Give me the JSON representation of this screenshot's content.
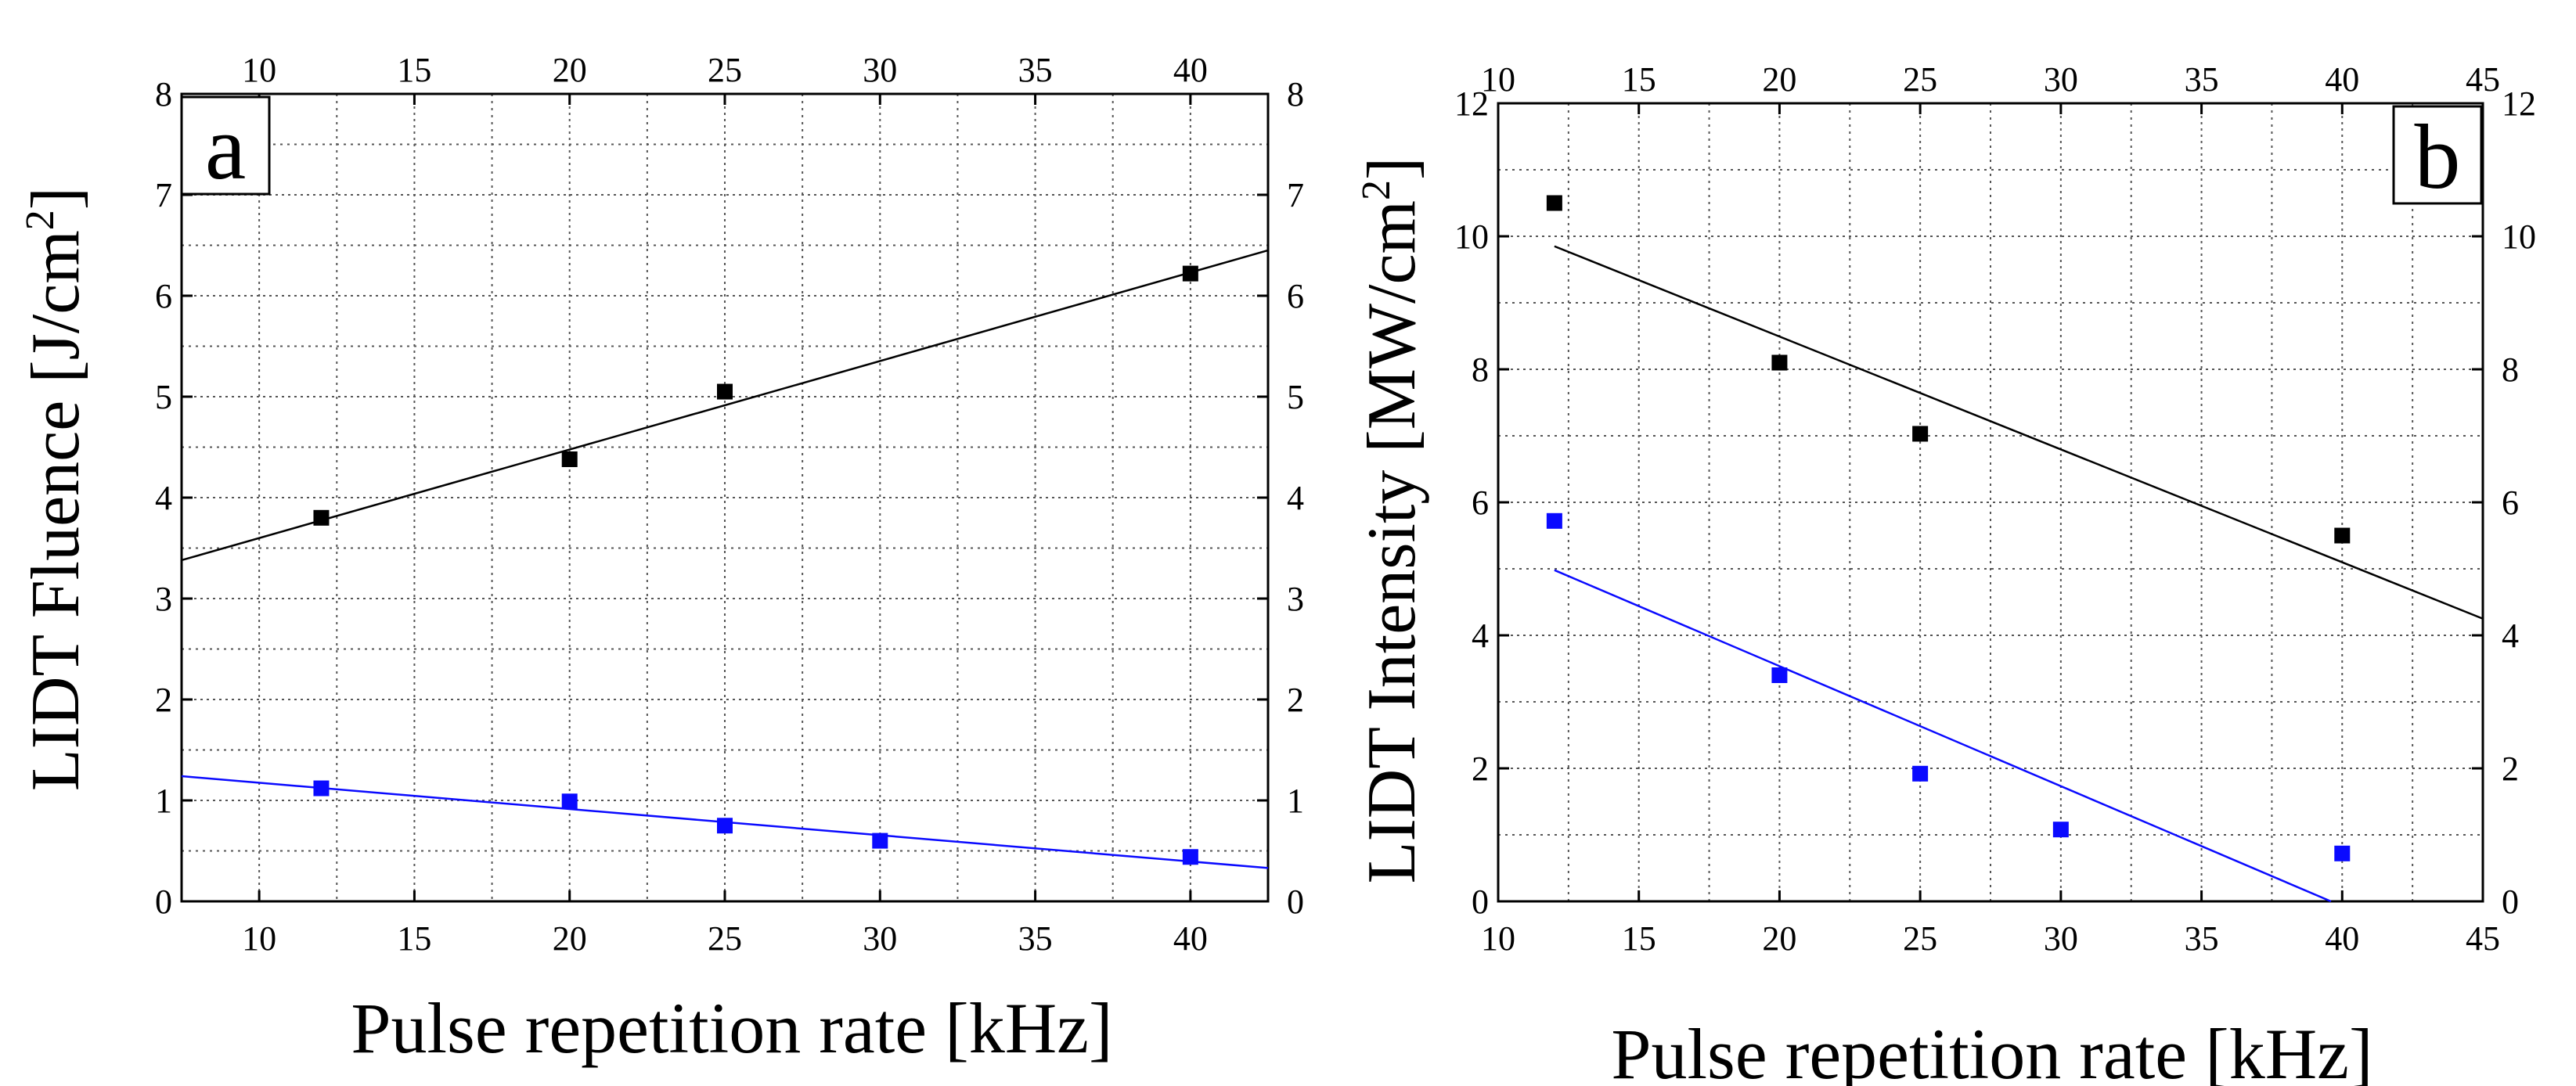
{
  "colors": {
    "black_series": "#000000",
    "blue_series": "#0a0aff",
    "grid": "#555555",
    "axis": "#000000"
  },
  "chart_data": [
    {
      "panel_label": "a",
      "type": "scatter",
      "xlabel": "Pulse repetition rate [kHz]",
      "ylabel": "LIDT Fluence [J/cm",
      "ylabel_sup": "2",
      "ylabel_end": "]",
      "xlim": [
        7.5,
        42.5
      ],
      "ylim": [
        0,
        8
      ],
      "xticks": [
        10,
        15,
        20,
        25,
        30,
        35,
        40
      ],
      "yticks": [
        0,
        1,
        2,
        3,
        4,
        5,
        6,
        7,
        8
      ],
      "grid": true,
      "series": [
        {
          "name": "black",
          "color": "#000000",
          "x": [
            12,
            20,
            25,
            40
          ],
          "y": [
            3.8,
            4.38,
            5.05,
            6.22
          ],
          "fit": {
            "x": [
              7.5,
              42.5
            ],
            "y": [
              3.38,
              6.45
            ]
          }
        },
        {
          "name": "blue",
          "color": "#0a0aff",
          "x": [
            12,
            20,
            25,
            30,
            40
          ],
          "y": [
            1.12,
            0.99,
            0.75,
            0.6,
            0.44
          ],
          "fit": {
            "x": [
              7.5,
              42.5
            ],
            "y": [
              1.24,
              0.33
            ]
          }
        }
      ]
    },
    {
      "panel_label": "b",
      "type": "scatter",
      "xlabel": "Pulse repetition rate [kHz]",
      "ylabel": "LIDT Intensity [MW/cm",
      "ylabel_sup": "2",
      "ylabel_end": "]",
      "xlim": [
        10,
        45
      ],
      "ylim": [
        0,
        12
      ],
      "xticks": [
        10,
        15,
        20,
        25,
        30,
        35,
        40,
        45
      ],
      "yticks": [
        0,
        2,
        4,
        6,
        8,
        10,
        12
      ],
      "grid": true,
      "series": [
        {
          "name": "black",
          "color": "#000000",
          "x": [
            12,
            20,
            25,
            40
          ],
          "y": [
            10.5,
            8.1,
            7.03,
            5.5
          ],
          "fit": {
            "x": [
              12,
              45
            ],
            "y": [
              9.85,
              4.25
            ]
          }
        },
        {
          "name": "blue",
          "color": "#0a0aff",
          "x": [
            12,
            20,
            25,
            30,
            40
          ],
          "y": [
            5.72,
            3.4,
            1.92,
            1.08,
            0.72
          ],
          "fit": {
            "x": [
              12,
              39.6
            ],
            "y": [
              4.98,
              0
            ]
          }
        }
      ]
    }
  ]
}
